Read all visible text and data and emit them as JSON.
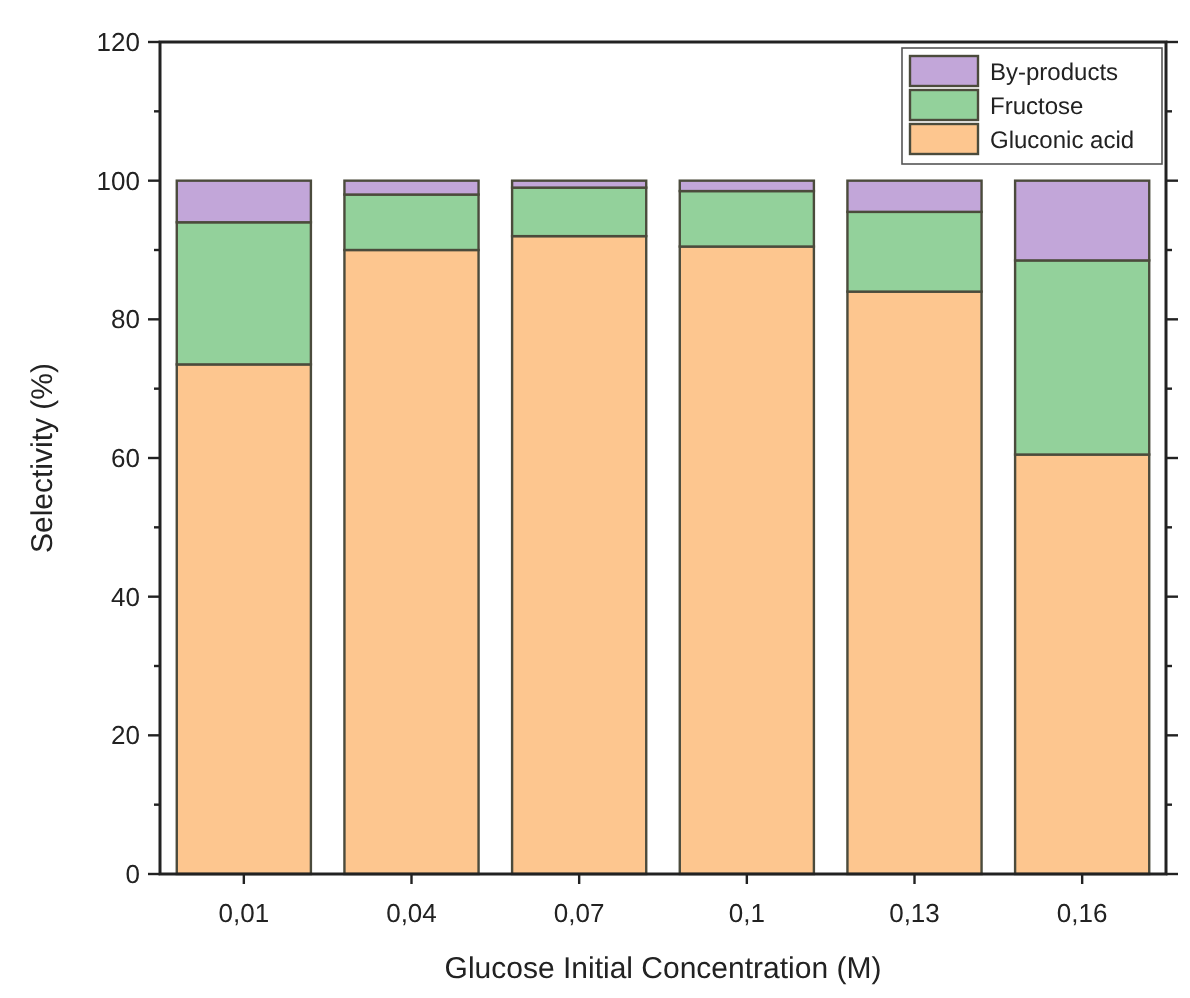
{
  "chart_data": {
    "type": "bar",
    "stacked": true,
    "xlabel": "Glucose Initial Concentration (M)",
    "ylabel": "Selectivity (%)",
    "categories": [
      "0,01",
      "0,04",
      "0,07",
      "0,1",
      "0,13",
      "0,16"
    ],
    "series": [
      {
        "name": "Gluconic acid",
        "color": "#fdc68f",
        "values": [
          73.5,
          90,
          92,
          90.5,
          84,
          60.5
        ]
      },
      {
        "name": "Fructose",
        "color": "#93d19b",
        "values": [
          20.5,
          8,
          7,
          8,
          11.5,
          28
        ]
      },
      {
        "name": "By-products",
        "color": "#c2a6d9",
        "values": [
          6,
          2,
          1,
          1.5,
          4.5,
          11.5
        ]
      }
    ],
    "ylim": [
      0,
      120
    ],
    "yticks": [
      0,
      {
        "value": 10,
        "label": null
      },
      20,
      {
        "value": 30,
        "label": null
      },
      40,
      {
        "value": 50,
        "label": null
      },
      60,
      {
        "value": 70,
        "label": null
      },
      80,
      {
        "value": 90,
        "label": null
      },
      100,
      {
        "value": 110,
        "label": null
      },
      120
    ],
    "legend": "top right",
    "grid": false
  }
}
